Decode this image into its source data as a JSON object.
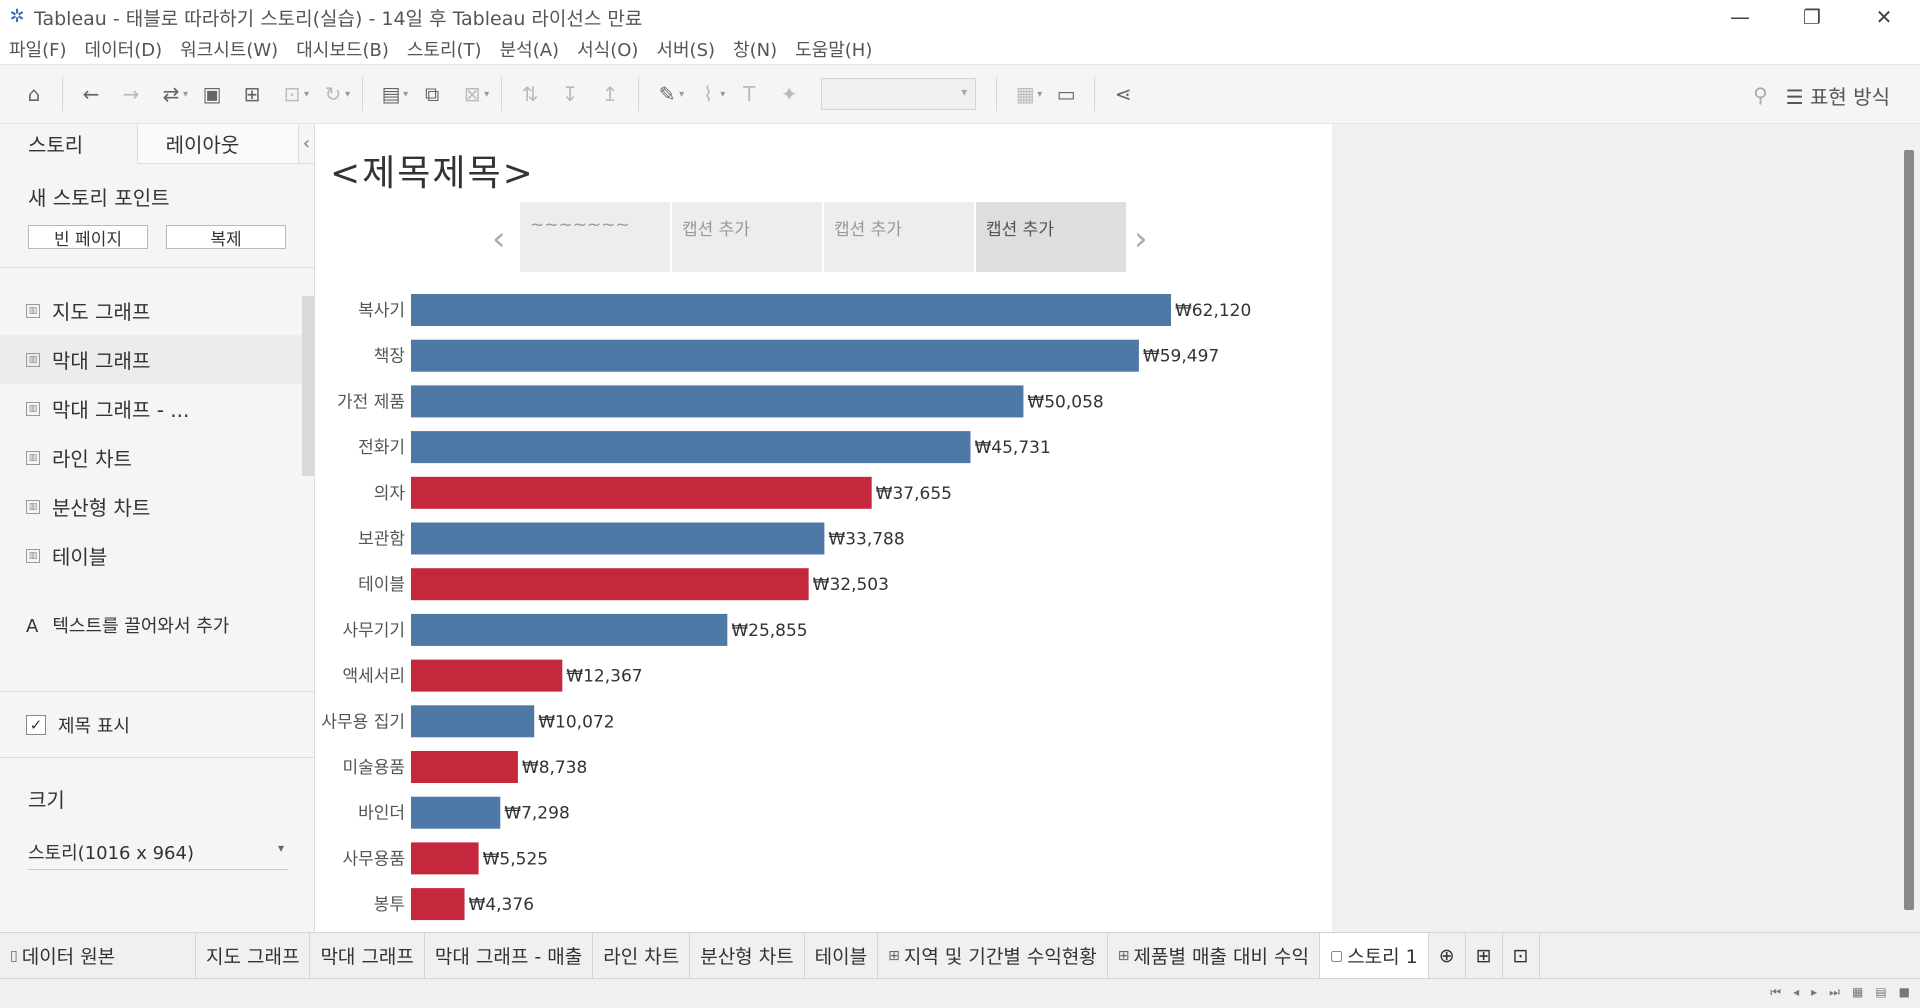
{
  "window": {
    "title": "Tableau - 태블로 따라하기 스토리(실습) - 14일 후 Tableau 라이선스 만료",
    "minimize": "—",
    "restore": "❐",
    "close": "✕"
  },
  "menu": [
    "파일(F)",
    "데이터(D)",
    "워크시트(W)",
    "대시보드(B)",
    "스토리(T)",
    "분석(A)",
    "서식(O)",
    "서버(S)",
    "창(N)",
    "도움말(H)"
  ],
  "toolbar": {
    "present_label": "표현 방식"
  },
  "left_panel": {
    "tab_story": "스토리",
    "tab_layout": "레이아웃",
    "new_story_point": "새 스토리 포인트",
    "blank_page": "빈 페이지",
    "duplicate": "복제",
    "sheets": [
      "지도 그래프",
      "막대 그래프",
      "막대 그래프 - ...",
      "라인 차트",
      "분산형 차트",
      "테이블"
    ],
    "drag_text_icon": "A",
    "drag_text": "텍스트를 끌어와서 추가",
    "show_title": "제목 표시",
    "show_title_checked": true,
    "size_label": "크기",
    "size_value": "스토리(1016 x 964)"
  },
  "story": {
    "title": "<제목제목>",
    "captions": [
      "~~~~~~~",
      "캡션 추가",
      "캡션 추가",
      "캡션 추가"
    ],
    "active_caption_index": 3
  },
  "chart_data": {
    "type": "bar",
    "orientation": "horizontal",
    "categories": [
      "복사기",
      "책장",
      "가전 제품",
      "전화기",
      "의자",
      "보관함",
      "테이블",
      "사무기기",
      "액세서리",
      "사무용 집기",
      "미술용품",
      "바인더",
      "사무용품",
      "봉투"
    ],
    "values": [
      62120,
      59497,
      50058,
      45731,
      37655,
      33788,
      32503,
      25855,
      12367,
      10072,
      8738,
      7298,
      5525,
      4376
    ],
    "labels": [
      "₩62,120",
      "₩59,497",
      "₩50,058",
      "₩45,731",
      "₩37,655",
      "₩33,788",
      "₩32,503",
      "₩25,855",
      "₩12,367",
      "₩10,072",
      "₩8,738",
      "₩7,298",
      "₩5,525",
      "₩4,376"
    ],
    "colors": [
      "#4e79a7",
      "#4e79a7",
      "#4e79a7",
      "#4e79a7",
      "#c5283d",
      "#4e79a7",
      "#c5283d",
      "#4e79a7",
      "#c5283d",
      "#4e79a7",
      "#c5283d",
      "#4e79a7",
      "#c5283d",
      "#c5283d"
    ],
    "grid": false,
    "title": "",
    "xlabel": "",
    "ylabel": ""
  },
  "bottom_tabs": {
    "data_source": "데이터 원본",
    "sheets": [
      "지도 그래프",
      "막대 그래프",
      "막대 그래프 - 매출",
      "라인 차트",
      "분산형 차트",
      "테이블",
      "지역 및 기간별 수익현황",
      "제품별 매출 대비 수익",
      "스토리 1"
    ],
    "active": "스토리 1"
  }
}
